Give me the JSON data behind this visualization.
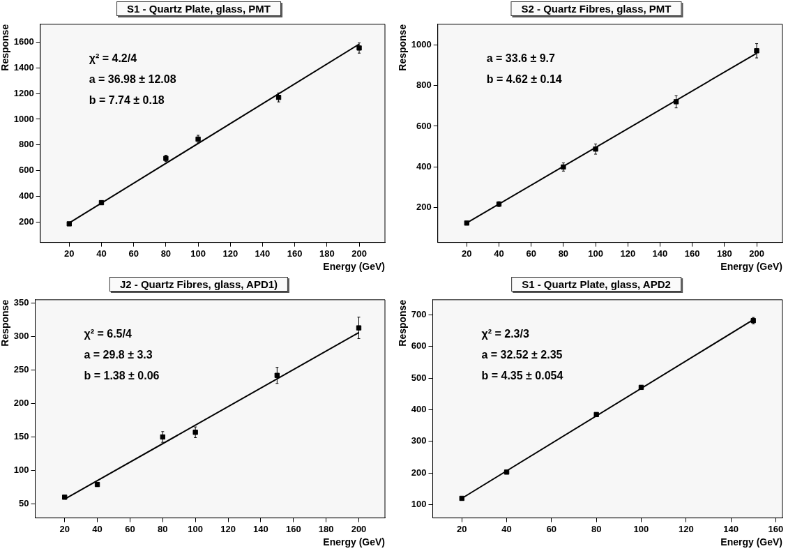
{
  "chart_data": [
    {
      "type": "scatter",
      "title": "S1 - Quartz Plate, glass, PMT",
      "xlabel": "Energy (GeV)",
      "ylabel": "Response",
      "xlim": [
        2,
        216
      ],
      "ylim": [
        40,
        1740
      ],
      "xticks": [
        20,
        40,
        60,
        80,
        100,
        120,
        140,
        160,
        180,
        200
      ],
      "yticks": [
        200,
        400,
        600,
        800,
        1000,
        1200,
        1400,
        1600
      ],
      "annotations": [
        "χ² = 4.2/4",
        "a = 36.98 ± 12.08",
        "b = 7.74 ± 0.18"
      ],
      "series": [
        {
          "type": "scatter",
          "marker": "square",
          "color": "#000000",
          "x": [
            20,
            40,
            80,
            100,
            150,
            200
          ],
          "values": [
            185,
            350,
            695,
            845,
            1170,
            1555
          ],
          "errors": [
            12,
            15,
            25,
            30,
            35,
            40
          ]
        },
        {
          "type": "line",
          "color": "#000000",
          "x": [
            20,
            200
          ],
          "values": [
            192,
            1585
          ]
        }
      ]
    },
    {
      "type": "scatter",
      "title": "S2 - Quartz Fibres, glass, PMT",
      "xlabel": "Energy (GeV)",
      "ylabel": "Response",
      "xlim": [
        2,
        216
      ],
      "ylim": [
        30,
        1100
      ],
      "xticks": [
        20,
        40,
        60,
        80,
        100,
        120,
        140,
        160,
        180,
        200
      ],
      "yticks": [
        200,
        400,
        600,
        800,
        1000
      ],
      "annotations": [
        "a = 33.6 ± 9.7",
        "b = 4.62 ± 0.14"
      ],
      "series": [
        {
          "type": "scatter",
          "marker": "square",
          "color": "#000000",
          "x": [
            20,
            40,
            80,
            100,
            150,
            200
          ],
          "values": [
            125,
            218,
            400,
            488,
            720,
            970
          ],
          "errors": [
            8,
            12,
            20,
            25,
            30,
            35
          ]
        },
        {
          "type": "line",
          "color": "#000000",
          "x": [
            20,
            200
          ],
          "values": [
            126,
            958
          ]
        }
      ]
    },
    {
      "type": "scatter",
      "title": "J2 - Quartz Fibres, glass, APD1)",
      "xlabel": "Energy (GeV)",
      "ylabel": "Response",
      "xlim": [
        2,
        216
      ],
      "ylim": [
        29,
        355
      ],
      "xticks": [
        20,
        40,
        60,
        80,
        100,
        120,
        140,
        160,
        180,
        200
      ],
      "yticks": [
        50,
        100,
        150,
        200,
        250,
        300,
        350
      ],
      "annotations": [
        "χ² = 6.5/4",
        "a = 29.8 ± 3.3",
        "b = 1.38 ± 0.06"
      ],
      "series": [
        {
          "type": "scatter",
          "marker": "square",
          "color": "#000000",
          "x": [
            20,
            40,
            80,
            100,
            150,
            200
          ],
          "values": [
            60,
            79,
            150,
            157,
            242,
            313
          ],
          "errors": [
            2,
            3,
            8,
            8,
            12,
            16
          ]
        },
        {
          "type": "line",
          "color": "#000000",
          "x": [
            20,
            200
          ],
          "values": [
            57,
            306
          ]
        }
      ]
    },
    {
      "type": "scatter",
      "title": "S1 - Quartz Plate, glass, APD2",
      "xlabel": "Energy (GeV)",
      "ylabel": "Response",
      "xlim": [
        7,
        163
      ],
      "ylim": [
        58,
        748
      ],
      "xticks": [
        20,
        40,
        60,
        80,
        100,
        120,
        140,
        160
      ],
      "yticks": [
        100,
        200,
        300,
        400,
        500,
        600,
        700
      ],
      "annotations": [
        "χ² = 2.3/3",
        "a = 32.52 ± 2.35",
        "b = 4.35 ± 0.054"
      ],
      "series": [
        {
          "type": "scatter",
          "marker": "square",
          "color": "#000000",
          "x": [
            20,
            40,
            80,
            100,
            150
          ],
          "values": [
            120,
            203,
            385,
            471,
            682
          ],
          "errors": [
            4,
            5,
            6,
            6,
            10
          ]
        },
        {
          "type": "line",
          "color": "#000000",
          "x": [
            20,
            150
          ],
          "values": [
            120,
            685
          ]
        }
      ]
    }
  ]
}
